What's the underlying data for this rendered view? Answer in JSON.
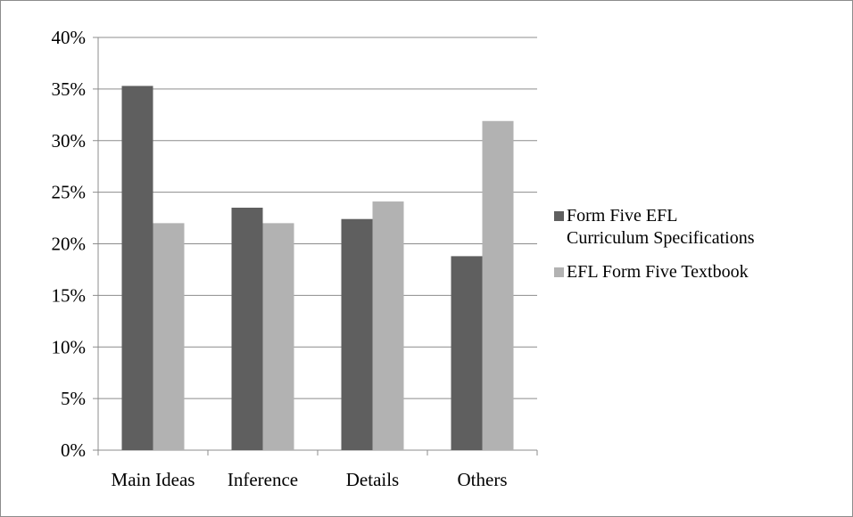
{
  "chart_data": {
    "type": "bar",
    "categories": [
      "Main Ideas",
      "Inference",
      "Details",
      "Others"
    ],
    "series": [
      {
        "name": "Form Five EFL Curriculum Specifications",
        "values": [
          35.3,
          23.5,
          22.4,
          18.8
        ]
      },
      {
        "name": "EFL Form Five Textbook",
        "values": [
          22.0,
          22.0,
          24.1,
          31.9
        ]
      }
    ],
    "ylim": [
      0,
      40
    ],
    "ytick_step": 5,
    "ytick_labels": [
      "0%",
      "5%",
      "10%",
      "15%",
      "20%",
      "25%",
      "30%",
      "35%",
      "40%"
    ],
    "grid": true,
    "legend_position": "right",
    "legend_lines": [
      [
        "Form Five EFL",
        "Curriculum Specifications"
      ],
      [
        "EFL Form Five Textbook"
      ]
    ],
    "colors": [
      "#5f5f5f",
      "#b2b2b2"
    ],
    "title": "",
    "xlabel": "",
    "ylabel": ""
  }
}
